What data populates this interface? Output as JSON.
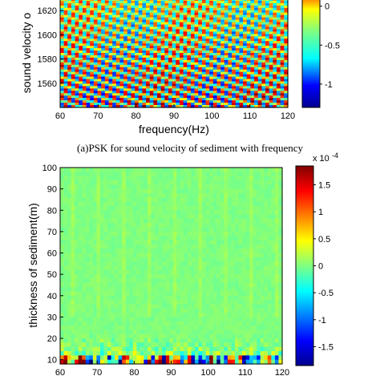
{
  "chart_data": [
    {
      "type": "heatmap",
      "caption": "(a)PSK for  sound velocity of sediment with frequency",
      "xlabel": "frequency(Hz)",
      "ylabel": "sound velocity o",
      "xlim": [
        60,
        120
      ],
      "x_ticks": [
        60,
        70,
        80,
        90,
        100,
        110,
        120
      ],
      "ylim": [
        1540,
        1630
      ],
      "y_ticks": [
        1560,
        1580,
        1600,
        1620
      ],
      "colorbar": {
        "visible_ticks": [
          0,
          -0.5,
          -1
        ],
        "tick_labels": [
          "0",
          "-0.5",
          "-1"
        ]
      },
      "pattern": "diagonal banded stripes across the full field"
    },
    {
      "type": "heatmap",
      "xlabel": "",
      "ylabel": "thickness of sediment(m)",
      "xlim": [
        60,
        120
      ],
      "x_ticks": [
        60,
        70,
        80,
        90,
        100,
        110,
        120
      ],
      "ylim": [
        8,
        100
      ],
      "y_ticks": [
        10,
        20,
        30,
        40,
        50,
        60,
        70,
        80,
        90,
        100
      ],
      "colorbar": {
        "multiplier_label": "x 10",
        "multiplier_exponent": "-4",
        "ticks": [
          1.5,
          1,
          0.5,
          0,
          -0.5,
          -1,
          -1.5
        ],
        "tick_labels": [
          "1.5",
          "1",
          "0.5",
          "0",
          "-0.5",
          "-1",
          "-1.5"
        ],
        "range": [
          -1.85,
          1.85
        ]
      },
      "pattern": "mostly near zero; strong values concentrated below thickness 25 m"
    }
  ]
}
